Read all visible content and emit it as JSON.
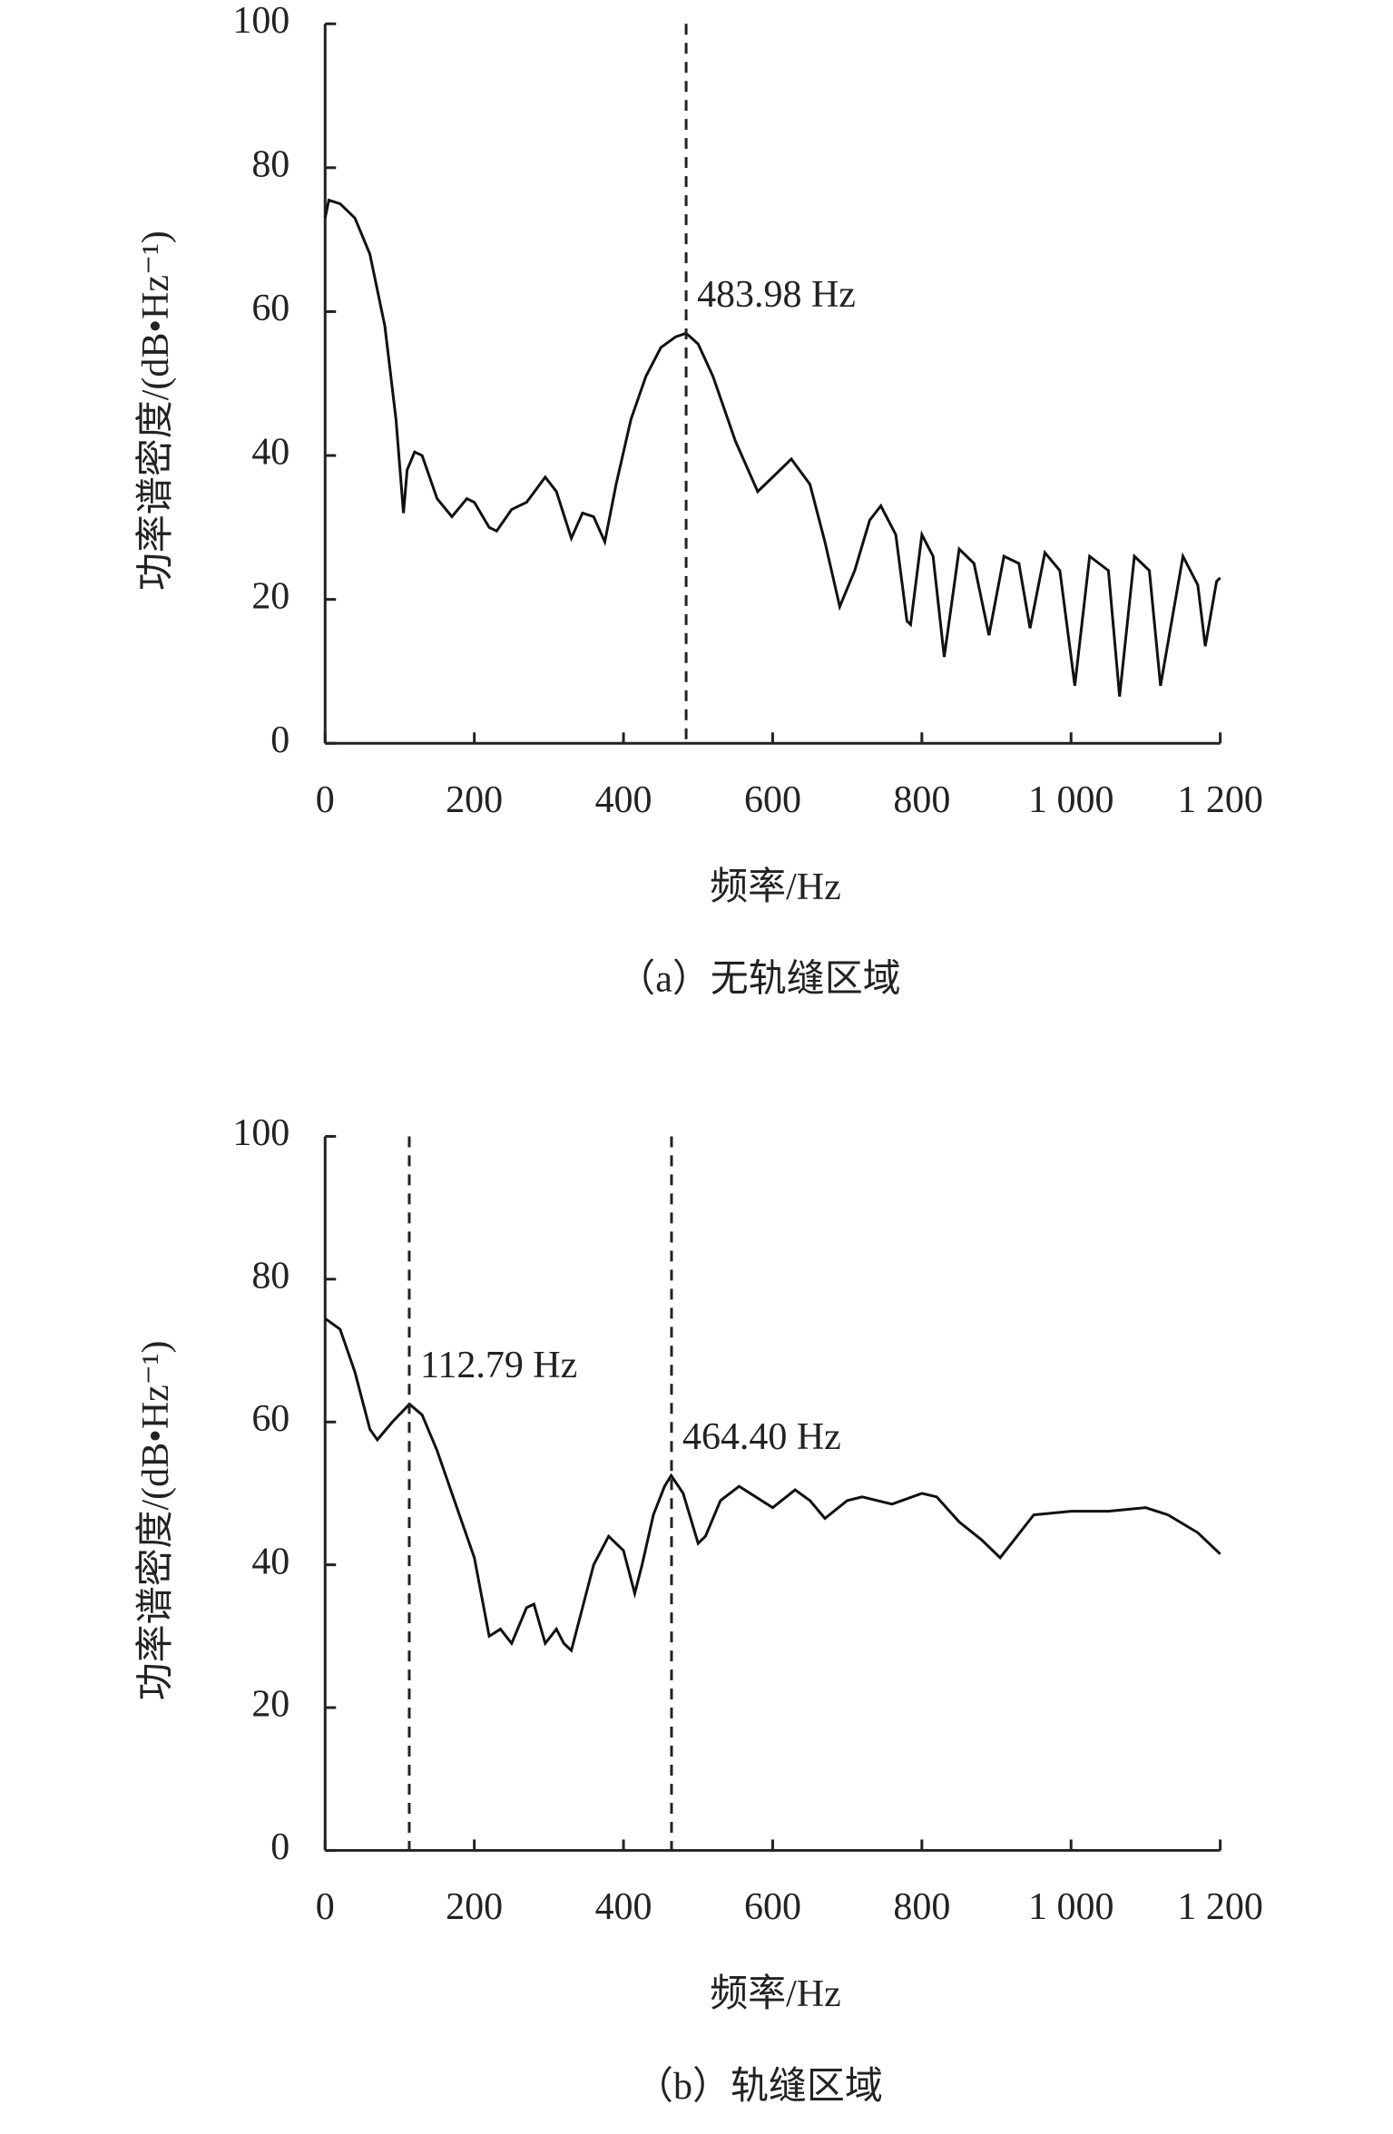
{
  "chart_data": [
    {
      "type": "line",
      "color": "#111",
      "ylabel": "功率谱密度/(dB•Hz⁻¹)",
      "xlabel": "频率/Hz",
      "caption": "（a）无轨缝区域",
      "xlim": [
        0,
        1200
      ],
      "ylim": [
        0,
        100
      ],
      "xticks": [
        0,
        200,
        400,
        600,
        800,
        {
          "value": 1000,
          "label": "1 000"
        },
        {
          "value": 1200,
          "label": "1 200"
        }
      ],
      "yticks": [
        0,
        20,
        40,
        60,
        80,
        100
      ],
      "annotations": [
        {
          "x": 483.98,
          "label": "483.98 Hz"
        }
      ],
      "x": [
        0,
        5,
        20,
        40,
        60,
        80,
        95,
        105,
        110,
        120,
        130,
        150,
        170,
        190,
        200,
        220,
        230,
        250,
        270,
        295,
        310,
        330,
        345,
        360,
        375,
        390,
        410,
        430,
        450,
        470,
        484,
        500,
        520,
        550,
        580,
        600,
        625,
        650,
        670,
        690,
        710,
        730,
        745,
        765,
        780,
        785,
        800,
        815,
        830,
        850,
        870,
        890,
        910,
        930,
        945,
        965,
        985,
        1005,
        1025,
        1050,
        1065,
        1085,
        1105,
        1120,
        1150,
        1170,
        1180,
        1195,
        1200
      ],
      "values": [
        73,
        75.5,
        75,
        73,
        68,
        58,
        45,
        32,
        38,
        40.5,
        40,
        34,
        31.5,
        34,
        33.5,
        30,
        29.5,
        32.5,
        33.5,
        37,
        35,
        28.5,
        32,
        31.5,
        28,
        36,
        45,
        51,
        55,
        56.5,
        57,
        55.5,
        51,
        42,
        35,
        37,
        39.5,
        36,
        28,
        19,
        24,
        31,
        33,
        29,
        17,
        16.5,
        29,
        26,
        12,
        27,
        25,
        15,
        26,
        25,
        16,
        26.5,
        24,
        8,
        26,
        24,
        6.5,
        26,
        24,
        8,
        26,
        22,
        13.5,
        22.5,
        23
      ]
    },
    {
      "type": "line",
      "color": "#111",
      "ylabel": "功率谱密度/(dB•Hz⁻¹)",
      "xlabel": "频率/Hz",
      "caption": "（b）轨缝区域",
      "xlim": [
        0,
        1200
      ],
      "ylim": [
        0,
        100
      ],
      "xticks": [
        0,
        200,
        400,
        600,
        800,
        {
          "value": 1000,
          "label": "1 000"
        },
        {
          "value": 1200,
          "label": "1 200"
        }
      ],
      "yticks": [
        0,
        20,
        40,
        60,
        80,
        100
      ],
      "annotations": [
        {
          "x": 112.79,
          "label": "112.79 Hz"
        },
        {
          "x": 464.4,
          "label": "464.40 Hz"
        }
      ],
      "x": [
        0,
        20,
        40,
        60,
        70,
        90,
        113,
        130,
        150,
        180,
        200,
        220,
        235,
        250,
        270,
        280,
        295,
        310,
        320,
        330,
        345,
        360,
        380,
        400,
        415,
        425,
        440,
        455,
        464,
        480,
        500,
        510,
        530,
        555,
        570,
        600,
        630,
        650,
        670,
        700,
        720,
        760,
        800,
        820,
        850,
        880,
        905,
        920,
        950,
        1000,
        1050,
        1100,
        1130,
        1170,
        1200
      ],
      "values": [
        74.5,
        73,
        67,
        59,
        57.5,
        60,
        62.5,
        61,
        56,
        47,
        41,
        30,
        31,
        29,
        34,
        34.5,
        29,
        31,
        29,
        28,
        34,
        40,
        44,
        42,
        36,
        40,
        47,
        51,
        52.5,
        50,
        43,
        44,
        49,
        51,
        50,
        48,
        50.5,
        49,
        46.5,
        49,
        49.5,
        48.5,
        50,
        49.5,
        46,
        43.5,
        41,
        43,
        47,
        47.5,
        47.5,
        48,
        47,
        44.5,
        41.5
      ]
    }
  ]
}
